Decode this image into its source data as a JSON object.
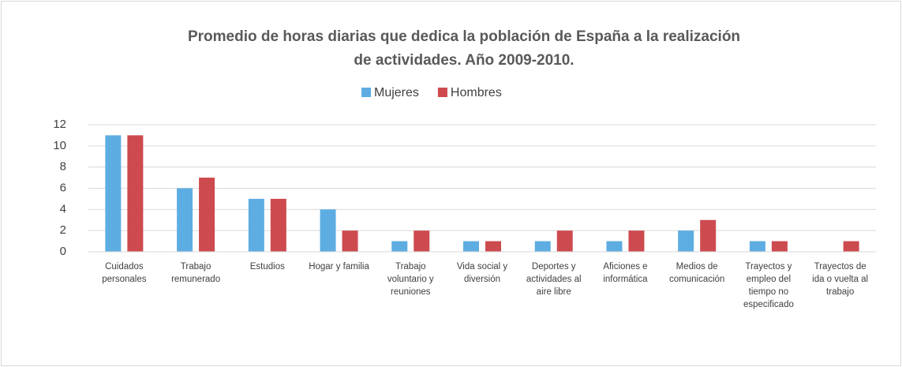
{
  "chart_data": {
    "type": "bar",
    "title": [
      "Promedio de horas diarias que dedica la población de España a la realización",
      "de actividades. Año 2009-2010."
    ],
    "categories": [
      "Cuidados personales",
      "Trabajo remunerado",
      "Estudios",
      "Hogar y familia",
      "Trabajo voluntario y reuniones",
      "Vida social y diversión",
      "Deportes y actividades al aire libre",
      "Aficiones e informática",
      "Medios de comunicación",
      "Trayectos y empleo del tiempo no especificado",
      "Trayectos de ida o vuelta al trabajo"
    ],
    "series": [
      {
        "name": "Mujeres",
        "color": "#5dade2",
        "values": [
          11,
          6,
          5,
          4,
          1,
          1,
          1,
          1,
          2,
          1,
          0
        ]
      },
      {
        "name": "Hombres",
        "color": "#cd4a4f",
        "values": [
          11,
          7,
          5,
          2,
          2,
          1,
          2,
          2,
          3,
          1,
          1
        ]
      }
    ],
    "ylim": [
      0,
      12
    ],
    "yticks": [
      0,
      2,
      4,
      6,
      8,
      10,
      12
    ],
    "grid": true,
    "legend": "top"
  }
}
